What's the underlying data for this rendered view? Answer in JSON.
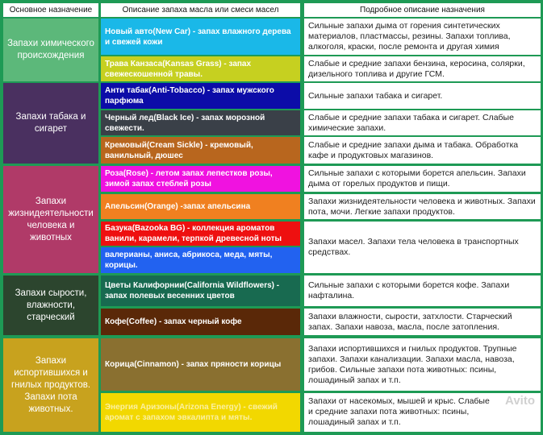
{
  "headers": [
    "Основное назначение",
    "Описание запаха масла или смеси масел",
    "Подробное описание назначения"
  ],
  "categories": [
    {
      "label": "Запахи химического происхождения",
      "color": "#5cb87a"
    },
    {
      "label": "Запахи табака и сигарет",
      "color": "#4a3060"
    },
    {
      "label": "Запахи жизнидеятельности человека и животных",
      "color": "#b03a68"
    },
    {
      "label": "Запахи сырости, влажности, старческий",
      "color": "#2c452e"
    },
    {
      "label": "Запахи испортившихся и гнилых продуктов. Запахи пота животных.",
      "color": "#c8a21e"
    }
  ],
  "oils": [
    {
      "label": "Новый авто(New Car) - запах влажного дерева и свежей кожи",
      "color": "#1ab8e8"
    },
    {
      "label": "Трава Канзаса(Kansas Grass) - запах свежескошенной травы.",
      "color": "#c6d020"
    },
    {
      "label": "Анти табак(Anti-Tobacco) - запах мужского парфюма",
      "color": "#0c0ca8"
    },
    {
      "label": "Черный лед(Black Ice) - запах морозной свежести.",
      "color": "#3a4048"
    },
    {
      "label": "Кремовый(Cream Sickle) - кремовый, ванильный, дюшес",
      "color": "#b8661e"
    },
    {
      "label": "Роза(Rose) - летом запах лепестков розы, зимой запах стеблей розы",
      "color": "#f012e0"
    },
    {
      "label": "Апельсин(Orange) -запах апельсина",
      "color": "#f08020"
    },
    {
      "label": "Базука(Bazooka BG) - коллекция ароматов ванили, карамели, терпкой древесной ноты",
      "color": "#ee1010"
    },
    {
      "label": "валерианы, аниса, абрикоса, меда, мяты, корицы.",
      "color": "#2262f0"
    },
    {
      "label": "Цветы Калифорнии(California Wildflowers) - запах полевых весенних цветов",
      "color": "#186a50"
    },
    {
      "label": "Кофе(Coffee) - запах черный кофе",
      "color": "#5a2808"
    },
    {
      "label": "Корица(Cinnamon) - запах пряности корицы",
      "color": "#8a7030"
    },
    {
      "label": "Энергия Аризоны(Arizona Energy) - свежий аромат с запахом эвкалипта и мяты.",
      "color": "#f2d800"
    }
  ],
  "descriptions": [
    "Сильные запахи дыма от горения синтетических материалов, пластмассы, резины. Запахи топлива, алкоголя, краски, после ремонта и другая химия",
    "Слабые и средние запахи бензина, керосина, солярки, дизельного топлива и другие ГСМ.",
    "Сильные запахи табака и сигарет.",
    "Слабые и средние запахи табака и сигарет. Слабые химические запахи.",
    "Слабые и средние запахи дыма и табака. Обработка кафе и продуктовых магазинов.",
    "Сильные запахи с которыми борется апельсин. Запахи дыма от горелых продуктов и пищи.",
    "Запахи жизнидеятельности человека и животных. Запахи пота, мочи. Легкие запахи продуктов.",
    "Запахи масел. Запахи тела человека в транспортных средствах.",
    "Сильные запахи с которыми борется кофе. Запахи нафталина.",
    "Запахи влажности, сырости, затхлости. Старческий запах. Запахи навоза, масла, после затопления.",
    "Запахи испортившихся и гнилых продуктов. Трупные запахи. Запахи канализации. Запахи масла, навоза, грибов. Сильные запахи пота животных: псины, лошадиный запах  и т.п.",
    "Запахи от насекомых, мышей и крыс. Слабые и средние запахи пота животных: псины, лошадиный запах  и т.п."
  ],
  "watermark": "Avito"
}
